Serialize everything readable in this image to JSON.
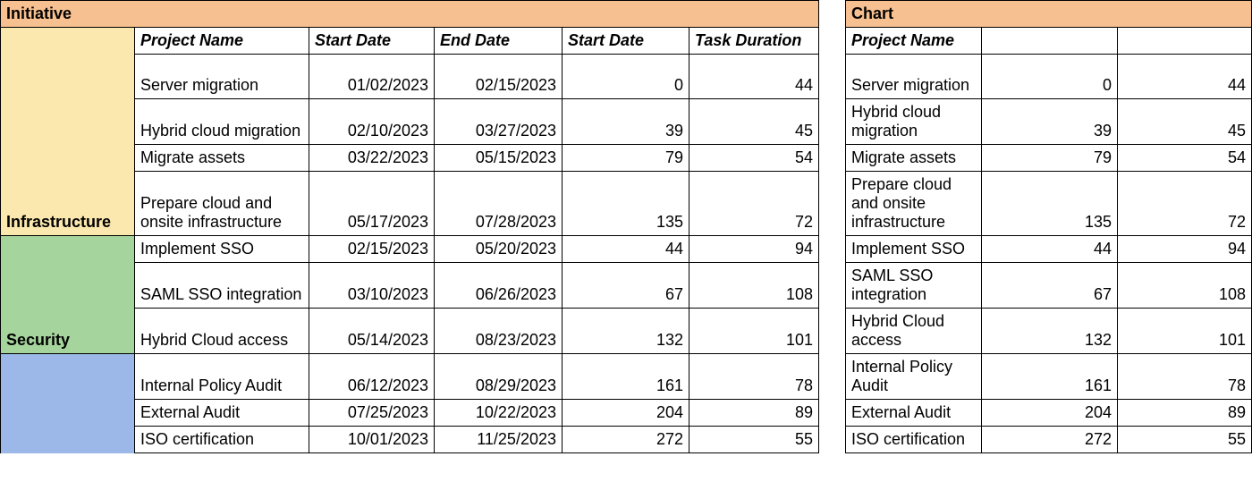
{
  "colors": {
    "header_fill": "#f7c090",
    "infra_fill": "#fbe8af",
    "security_fill": "#a6d49d",
    "audit_fill": "#9cb8e8",
    "border": "#000000",
    "text": "#000000",
    "background": "#ffffff"
  },
  "left_table": {
    "title": "Initiative",
    "columns": {
      "project": "Project Name",
      "start": "Start Date",
      "end": "End Date",
      "start2": "Start Date",
      "dur": "Task Duration"
    },
    "groups": [
      {
        "name": "Infrastructure",
        "fill_key": "infra_fill"
      },
      {
        "name": "Security",
        "fill_key": "security_fill"
      },
      {
        "name": "",
        "fill_key": "audit_fill"
      }
    ],
    "rows": [
      {
        "group": 0,
        "project": "Server migration",
        "start": "01/02/2023",
        "end": "02/15/2023",
        "sd": 0,
        "dur": 44
      },
      {
        "group": 0,
        "project": "Hybrid cloud migration",
        "start": "02/10/2023",
        "end": "03/27/2023",
        "sd": 39,
        "dur": 45
      },
      {
        "group": 0,
        "project": "Migrate assets",
        "start": "03/22/2023",
        "end": "05/15/2023",
        "sd": 79,
        "dur": 54
      },
      {
        "group": 0,
        "project": "Prepare cloud and onsite infrastructure",
        "start": "05/17/2023",
        "end": "07/28/2023",
        "sd": 135,
        "dur": 72
      },
      {
        "group": 1,
        "project": "Implement SSO",
        "start": "02/15/2023",
        "end": "05/20/2023",
        "sd": 44,
        "dur": 94
      },
      {
        "group": 1,
        "project": "SAML SSO integration",
        "start": "03/10/2023",
        "end": "06/26/2023",
        "sd": 67,
        "dur": 108
      },
      {
        "group": 1,
        "project": "Hybrid Cloud access",
        "start": "05/14/2023",
        "end": "08/23/2023",
        "sd": 132,
        "dur": 101
      },
      {
        "group": 2,
        "project": "Internal Policy Audit",
        "start": "06/12/2023",
        "end": "08/29/2023",
        "sd": 161,
        "dur": 78
      },
      {
        "group": 2,
        "project": "External Audit",
        "start": "07/25/2023",
        "end": "10/22/2023",
        "sd": 204,
        "dur": 89
      },
      {
        "group": 2,
        "project": "ISO certification",
        "start": "10/01/2023",
        "end": "11/25/2023",
        "sd": 272,
        "dur": 55
      }
    ]
  },
  "right_table": {
    "title": "Chart",
    "columns": {
      "project": "Project Name"
    },
    "rows": [
      {
        "project": "Server migration",
        "sd": 0,
        "dur": 44
      },
      {
        "project": "Hybrid cloud migration",
        "sd": 39,
        "dur": 45
      },
      {
        "project": "Migrate assets",
        "sd": 79,
        "dur": 54
      },
      {
        "project": "Prepare cloud and onsite infrastructure",
        "sd": 135,
        "dur": 72
      },
      {
        "project": "Implement SSO",
        "sd": 44,
        "dur": 94
      },
      {
        "project": "SAML SSO integration",
        "sd": 67,
        "dur": 108
      },
      {
        "project": "Hybrid Cloud access",
        "sd": 132,
        "dur": 101
      },
      {
        "project": "Internal Policy Audit",
        "sd": 161,
        "dur": 78
      },
      {
        "project": "External Audit",
        "sd": 204,
        "dur": 89
      },
      {
        "project": "ISO certification",
        "sd": 272,
        "dur": 55
      }
    ]
  },
  "layout": {
    "row_heights": {
      "header": 30,
      "single": 30,
      "double": 50,
      "triple": 68
    },
    "font_family": "Arial",
    "font_size_pt": 14
  }
}
